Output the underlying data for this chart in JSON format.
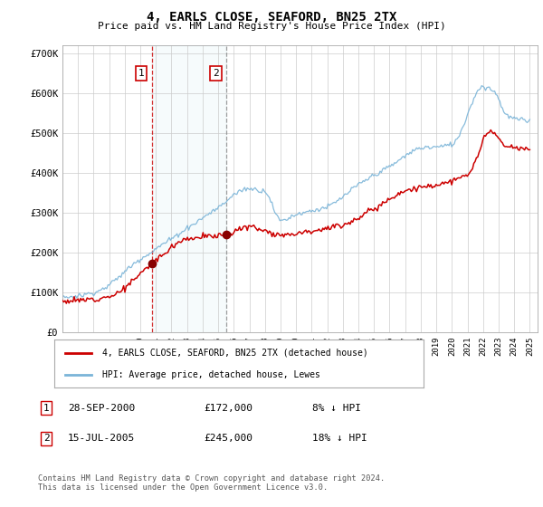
{
  "title": "4, EARLS CLOSE, SEAFORD, BN25 2TX",
  "subtitle": "Price paid vs. HM Land Registry's House Price Index (HPI)",
  "ytick_labels": [
    "£0",
    "£100K",
    "£200K",
    "£300K",
    "£400K",
    "£500K",
    "£600K",
    "£700K"
  ],
  "yticks": [
    0,
    100000,
    200000,
    300000,
    400000,
    500000,
    600000,
    700000
  ],
  "hpi_color": "#7ab4d8",
  "price_color": "#cc0000",
  "bg_color": "#ffffff",
  "grid_color": "#cccccc",
  "sale1_year": 2000.75,
  "sale1_price": 172000,
  "sale2_year": 2005.54,
  "sale2_price": 245000,
  "legend_label1": "4, EARLS CLOSE, SEAFORD, BN25 2TX (detached house)",
  "legend_label2": "HPI: Average price, detached house, Lewes",
  "sale1_date": "28-SEP-2000",
  "sale1_price_str": "£172,000",
  "sale1_hpi": "8% ↓ HPI",
  "sale2_date": "15-JUL-2005",
  "sale2_price_str": "£245,000",
  "sale2_hpi": "18% ↓ HPI",
  "footnote": "Contains HM Land Registry data © Crown copyright and database right 2024.\nThis data is licensed under the Open Government Licence v3.0."
}
